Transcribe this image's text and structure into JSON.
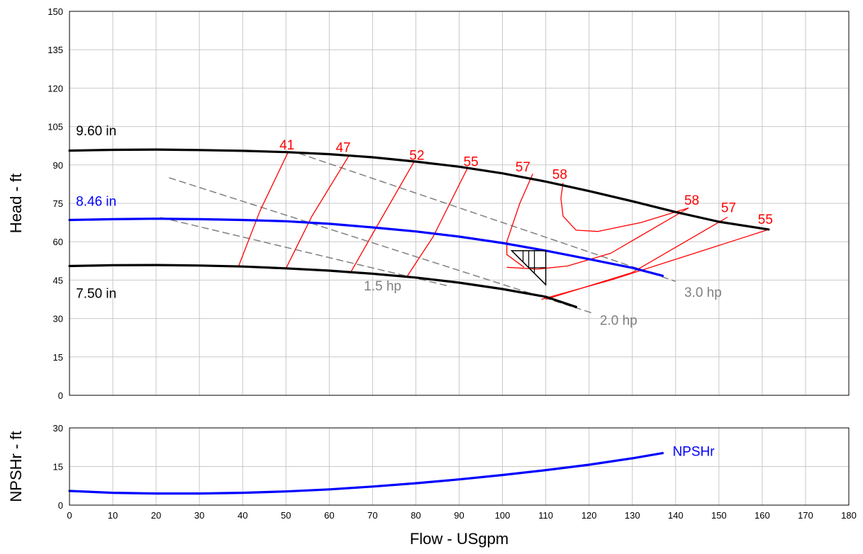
{
  "chart_data": [
    {
      "type": "line",
      "ylabel": "Head - ft",
      "xlim": [
        0,
        180
      ],
      "ylim": [
        0,
        150
      ],
      "xticks": [
        0,
        10,
        20,
        30,
        40,
        50,
        60,
        70,
        80,
        90,
        100,
        110,
        120,
        130,
        140,
        150,
        160,
        170,
        180
      ],
      "yticks": [
        0,
        15,
        30,
        45,
        60,
        75,
        90,
        105,
        120,
        135,
        150
      ],
      "grid": true,
      "colors": {
        "impeller": "#000000",
        "selected": "#0000ff",
        "efficiency": "#ff0000",
        "power": "#808080"
      },
      "impeller_curves": [
        {
          "label": "9.60 in",
          "color": "#000000",
          "points": [
            [
              0,
              95.6
            ],
            [
              10,
              95.9
            ],
            [
              20,
              96.0
            ],
            [
              30,
              95.8
            ],
            [
              40,
              95.5
            ],
            [
              50,
              95.0
            ],
            [
              60,
              94.2
            ],
            [
              70,
              93.0
            ],
            [
              80,
              91.3
            ],
            [
              90,
              89.3
            ],
            [
              100,
              86.7
            ],
            [
              110,
              83.5
            ],
            [
              120,
              79.8
            ],
            [
              130,
              75.8
            ],
            [
              140,
              71.6
            ],
            [
              150,
              67.8
            ],
            [
              161.5,
              64.8
            ]
          ]
        },
        {
          "label": "8.46 in",
          "color": "#0000ff",
          "points": [
            [
              0,
              68.5
            ],
            [
              10,
              68.8
            ],
            [
              20,
              69.0
            ],
            [
              30,
              68.8
            ],
            [
              40,
              68.5
            ],
            [
              50,
              68.0
            ],
            [
              60,
              67.0
            ],
            [
              70,
              65.6
            ],
            [
              80,
              64.0
            ],
            [
              90,
              62.0
            ],
            [
              100,
              59.5
            ],
            [
              110,
              56.5
            ],
            [
              120,
              53.2
            ],
            [
              130,
              49.8
            ],
            [
              137,
              46.7
            ]
          ]
        },
        {
          "label": "7.50 in",
          "color": "#000000",
          "points": [
            [
              0,
              50.5
            ],
            [
              10,
              50.8
            ],
            [
              20,
              50.9
            ],
            [
              30,
              50.7
            ],
            [
              40,
              50.3
            ],
            [
              50,
              49.6
            ],
            [
              60,
              48.7
            ],
            [
              70,
              47.5
            ],
            [
              80,
              46.0
            ],
            [
              90,
              44.0
            ],
            [
              100,
              41.5
            ],
            [
              110,
              38.5
            ],
            [
              117,
              34.5
            ]
          ]
        }
      ],
      "efficiency_curves": [
        {
          "label": "41",
          "points": [
            [
              39,
              50.2
            ],
            [
              44,
              72.0
            ],
            [
              50.5,
              95.0
            ]
          ]
        },
        {
          "label": "47",
          "points": [
            [
              50,
              49.6
            ],
            [
              56,
              70.0
            ],
            [
              64.5,
              93.5
            ]
          ]
        },
        {
          "label": "52",
          "points": [
            [
              65,
              48.2
            ],
            [
              71,
              66.0
            ],
            [
              79.5,
              91.0
            ]
          ]
        },
        {
          "label": "55",
          "points": [
            [
              78,
              46.5
            ],
            [
              84,
              62.0
            ],
            [
              92,
              89.0
            ]
          ]
        },
        {
          "label": "57",
          "points": [
            [
              110,
              37.5
            ],
            [
              130,
              48.0
            ],
            [
              152,
              69.6
            ],
            [
              152,
              69.6
            ]
          ]
        },
        {
          "label": "57",
          "points": [
            [
              105,
              50.0
            ],
            [
              101,
              55.0
            ],
            [
              101,
              60.0
            ],
            [
              104,
              75.0
            ],
            [
              107,
              86.5
            ]
          ]
        },
        {
          "label": "58",
          "points": [
            [
              143,
              73.2
            ],
            [
              132,
              67.5
            ],
            [
              122,
              64.0
            ],
            [
              117,
              64.5
            ],
            [
              114,
              70.0
            ],
            [
              113.5,
              77.0
            ],
            [
              114,
              83.0
            ]
          ]
        },
        {
          "label": "58",
          "points": [
            [
              101,
              50.0
            ],
            [
              108,
              49.3
            ],
            [
              115,
              50.5
            ],
            [
              125,
              55.5
            ],
            [
              143,
              73.2
            ]
          ]
        },
        {
          "label": "55",
          "points": [
            [
              109,
              37.5
            ],
            [
              125,
              45.0
            ],
            [
              161,
              64.5
            ]
          ]
        }
      ],
      "power_curves": [
        {
          "label": "1.5 hp",
          "points": [
            [
              21,
              69.5
            ],
            [
              88,
              42.5
            ]
          ]
        },
        {
          "label": "2.0 hp",
          "points": [
            [
              23,
              85.0
            ],
            [
              121,
              32.0
            ]
          ]
        },
        {
          "label": "3.0 hp",
          "points": [
            [
              53,
              94.5
            ],
            [
              140,
              44.5
            ]
          ]
        }
      ],
      "annotations": [
        {
          "text": "9.60 in",
          "x": 1.5,
          "y": 101.5,
          "color": "#000000"
        },
        {
          "text": "8.46 in",
          "x": 1.5,
          "y": 74.0,
          "color": "#0000ff"
        },
        {
          "text": "7.50 in",
          "x": 1.5,
          "y": 38.0,
          "color": "#000000"
        },
        {
          "text": "41",
          "x": 48.5,
          "y": 96.0,
          "color": "#ff0000"
        },
        {
          "text": "47",
          "x": 61.5,
          "y": 95.0,
          "color": "#ff0000"
        },
        {
          "text": "52",
          "x": 78.5,
          "y": 92.0,
          "color": "#ff0000"
        },
        {
          "text": "55",
          "x": 91.0,
          "y": 89.5,
          "color": "#ff0000"
        },
        {
          "text": "57",
          "x": 103.0,
          "y": 87.5,
          "color": "#ff0000"
        },
        {
          "text": "58",
          "x": 111.5,
          "y": 84.5,
          "color": "#ff0000"
        },
        {
          "text": "58",
          "x": 142.0,
          "y": 74.5,
          "color": "#ff0000"
        },
        {
          "text": "57",
          "x": 150.5,
          "y": 71.5,
          "color": "#ff0000"
        },
        {
          "text": "55",
          "x": 159.0,
          "y": 67.0,
          "color": "#ff0000"
        },
        {
          "text": "1.5 hp",
          "x": 68.0,
          "y": 41.0,
          "color": "#808080"
        },
        {
          "text": "2.0 hp",
          "x": 122.5,
          "y": 27.5,
          "color": "#808080"
        },
        {
          "text": "3.0 hp",
          "x": 142.0,
          "y": 38.5,
          "color": "#808080"
        }
      ],
      "duty_point": {
        "x": 110,
        "y": 56.5
      }
    },
    {
      "type": "line",
      "xlabel": "Flow - USgpm",
      "ylabel": "NPSHr - ft",
      "xlim": [
        0,
        180
      ],
      "ylim": [
        0,
        30
      ],
      "xticks": [
        0,
        10,
        20,
        30,
        40,
        50,
        60,
        70,
        80,
        90,
        100,
        110,
        120,
        130,
        140,
        150,
        160,
        170,
        180
      ],
      "yticks": [
        0,
        15,
        30
      ],
      "grid": true,
      "series": [
        {
          "name": "NPSHr",
          "color": "#0000ff",
          "points": [
            [
              0,
              5.5
            ],
            [
              10,
              4.8
            ],
            [
              20,
              4.5
            ],
            [
              30,
              4.5
            ],
            [
              40,
              4.8
            ],
            [
              50,
              5.3
            ],
            [
              60,
              6.1
            ],
            [
              70,
              7.2
            ],
            [
              80,
              8.5
            ],
            [
              90,
              10.0
            ],
            [
              100,
              11.7
            ],
            [
              110,
              13.6
            ],
            [
              120,
              15.7
            ],
            [
              130,
              18.2
            ],
            [
              137,
              20.2
            ]
          ]
        }
      ]
    }
  ]
}
